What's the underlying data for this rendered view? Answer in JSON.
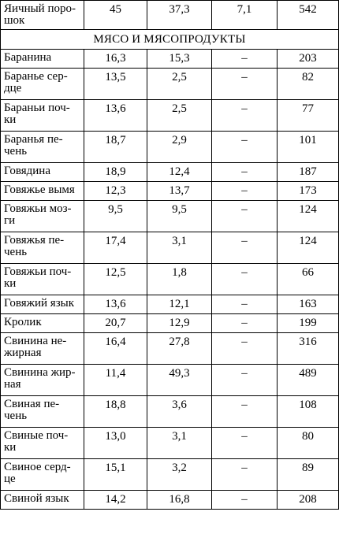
{
  "section_title": "МЯСО И МЯСОПРОДУКТЫ",
  "top_row": [
    "Яичный поро-\nшок",
    "45",
    "37,3",
    "7,1",
    "542"
  ],
  "rows": [
    {
      "name": "Баранина",
      "c1": "16,3",
      "c2": "15,3",
      "c3": "–",
      "c4": "203",
      "lines": 1
    },
    {
      "name": "Баранье сердце",
      "c1": "13,5",
      "c2": "2,5",
      "c3": "–",
      "c4": "82",
      "lines": 2
    },
    {
      "name": "Бараньи почки",
      "c1": "13,6",
      "c2": "2,5",
      "c3": "–",
      "c4": "77",
      "lines": 2
    },
    {
      "name": "Баранья печень",
      "c1": "18,7",
      "c2": "2,9",
      "c3": "–",
      "c4": "101",
      "lines": 2
    },
    {
      "name": "Говядина",
      "c1": "18,9",
      "c2": "12,4",
      "c3": "–",
      "c4": "187",
      "lines": 1
    },
    {
      "name": "Говяжье вымя",
      "c1": "12,3",
      "c2": "13,7",
      "c3": "–",
      "c4": "173",
      "lines": 1
    },
    {
      "name": "Говяжьи мозги",
      "c1": "9,5",
      "c2": "9,5",
      "c3": "–",
      "c4": "124",
      "lines": 2
    },
    {
      "name": "Говяжья печень",
      "c1": "17,4",
      "c2": "3,1",
      "c3": "–",
      "c4": "124",
      "lines": 2
    },
    {
      "name": "Говяжьи почки",
      "c1": "12,5",
      "c2": "1,8",
      "c3": "–",
      "c4": "66",
      "lines": 2
    },
    {
      "name": "Говяжий язык",
      "c1": "13,6",
      "c2": "12,1",
      "c3": "–",
      "c4": "163",
      "lines": 1
    },
    {
      "name": "Кролик",
      "c1": "20,7",
      "c2": "12,9",
      "c3": "–",
      "c4": "199",
      "lines": 1
    },
    {
      "name": "Свинина нежирная",
      "c1": "16,4",
      "c2": "27,8",
      "c3": "–",
      "c4": "316",
      "lines": 2
    },
    {
      "name": "Свинина жирная",
      "c1": "11,4",
      "c2": "49,3",
      "c3": "–",
      "c4": "489",
      "lines": 2
    },
    {
      "name": "Свиная печень",
      "c1": "18,8",
      "c2": "3,6",
      "c3": "–",
      "c4": "108",
      "lines": 2
    },
    {
      "name": "Свиные почки",
      "c1": "13,0",
      "c2": "3,1",
      "c3": "–",
      "c4": "80",
      "lines": 2
    },
    {
      "name": "Свиное сердце",
      "c1": "15,1",
      "c2": "3,2",
      "c3": "–",
      "c4": "89",
      "lines": 2
    },
    {
      "name": "Свиной язык",
      "c1": "14,2",
      "c2": "16,8",
      "c3": "–",
      "c4": "208",
      "lines": 1
    }
  ],
  "display_names": [
    "Баранина",
    "Баранье сер-\nдце",
    "Бараньи поч-\nки",
    "Баранья пе-\nчень",
    "Говядина",
    "Говяжье вымя",
    "Говяжьи моз-\nги",
    "Говяжья пе-\nчень",
    "Говяжьи поч-\nки",
    "Говяжий язык",
    "Кролик",
    "Свинина не-\nжирная",
    "Свинина жир-\nная",
    "Свиная пе-\nчень",
    "Свиные поч-\nки",
    "Свиное серд-\nце",
    "Свиной язык"
  ]
}
